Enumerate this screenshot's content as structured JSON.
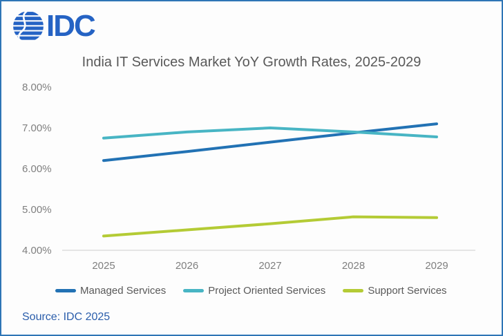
{
  "page": {
    "border_color": "#2e75b6",
    "background": "#fdfdfd"
  },
  "header": {
    "logo_text": "IDC",
    "logo_color": "#2563c4"
  },
  "chart_data": {
    "type": "line",
    "title": "India IT Services Market YoY Growth Rates, 2025-2029",
    "categories": [
      "2025",
      "2026",
      "2027",
      "2028",
      "2029"
    ],
    "series": [
      {
        "name": "Managed Services",
        "color": "#2272b4",
        "values": [
          6.2,
          6.42,
          6.65,
          6.88,
          7.1
        ]
      },
      {
        "name": "Project Oriented Services",
        "color": "#48b5c4",
        "values": [
          6.75,
          6.9,
          7.0,
          6.9,
          6.78
        ]
      },
      {
        "name": "Support Services",
        "color": "#b4cb35",
        "values": [
          4.35,
          4.5,
          4.65,
          4.82,
          4.8
        ]
      }
    ],
    "yticks": [
      "8.00%",
      "7.00%",
      "6.00%",
      "5.00%",
      "4.00%"
    ],
    "ylim": [
      4.0,
      8.0
    ],
    "y_unit": "percent",
    "xlabel": "",
    "ylabel": "",
    "grid": false,
    "legend_position": "bottom"
  },
  "footer": {
    "source": "Source: IDC 2025",
    "source_color": "#2a5dab"
  }
}
